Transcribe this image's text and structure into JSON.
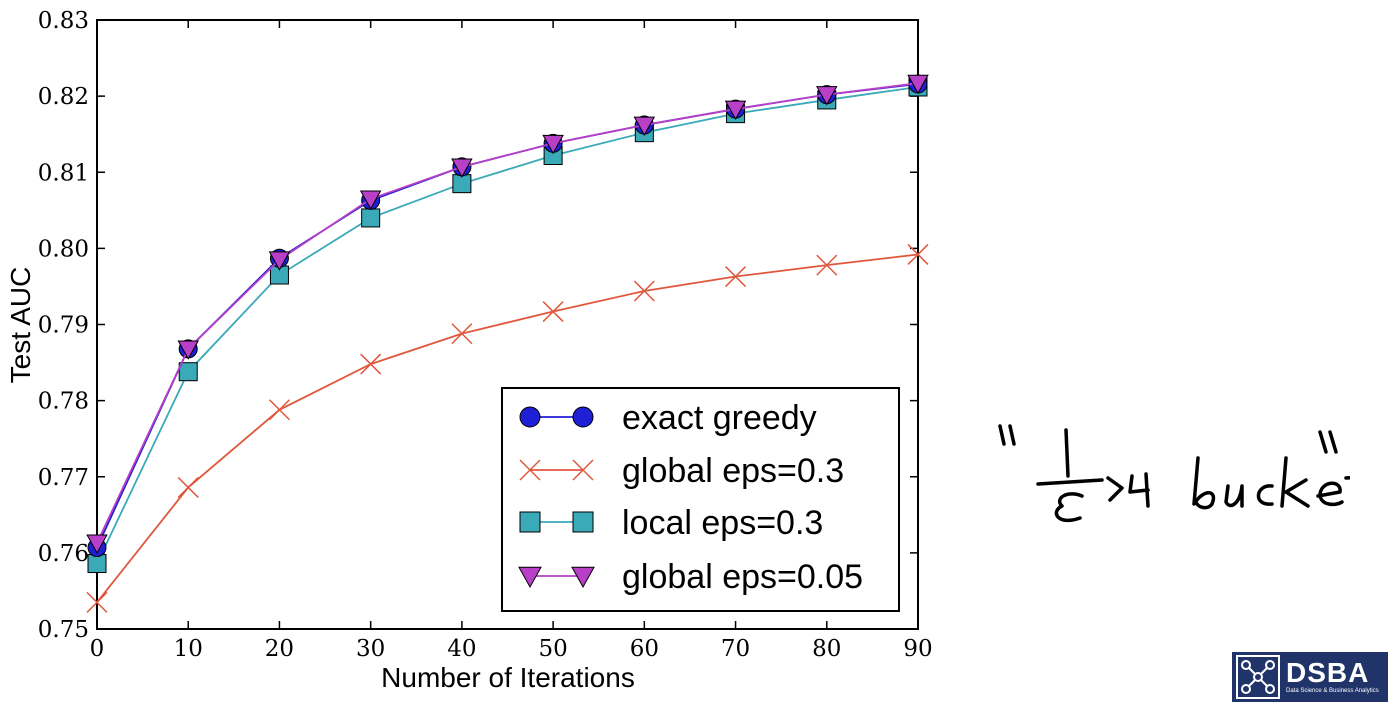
{
  "chart_data": {
    "type": "line",
    "title": "",
    "xlabel": "Number of Iterations",
    "ylabel": "Test AUC",
    "xlim": [
      0,
      90
    ],
    "ylim": [
      0.75,
      0.83
    ],
    "x_ticks": [
      "0",
      "10",
      "20",
      "30",
      "40",
      "50",
      "60",
      "70",
      "80",
      "90"
    ],
    "y_ticks": [
      "0.75",
      "0.76",
      "0.77",
      "0.78",
      "0.79",
      "0.80",
      "0.81",
      "0.82",
      "0.83"
    ],
    "x": [
      0,
      10,
      20,
      30,
      40,
      50,
      60,
      70,
      80,
      90
    ],
    "grid": false,
    "legend_position": "lower-right",
    "series": [
      {
        "name": "exact greedy",
        "color": "#1f1fd6",
        "marker": "circle",
        "values": [
          0.7607,
          0.7868,
          0.7987,
          0.8063,
          0.8107,
          0.8138,
          0.8162,
          0.8183,
          0.8202,
          0.8216
        ]
      },
      {
        "name": "global eps=0.3",
        "color": "#e0573c",
        "marker": "x",
        "values": [
          0.7535,
          0.7686,
          0.7788,
          0.7848,
          0.7888,
          0.7917,
          0.7944,
          0.7963,
          0.7978,
          0.7992
        ]
      },
      {
        "name": "local eps=0.3",
        "color": "#3aa9b8",
        "marker": "square",
        "values": [
          0.7586,
          0.7838,
          0.7965,
          0.804,
          0.8085,
          0.8122,
          0.8152,
          0.8177,
          0.8195,
          0.8212
        ]
      },
      {
        "name": "global eps=0.05",
        "color": "#b83fc7",
        "marker": "triangle-down",
        "values": [
          0.7613,
          0.7868,
          0.7985,
          0.8065,
          0.8107,
          0.8138,
          0.8162,
          0.8183,
          0.8202,
          0.8217
        ]
      }
    ]
  },
  "logo": {
    "word": "DSBA",
    "subtitle": "Data Science & Business Analytics",
    "background": "#20346a"
  }
}
